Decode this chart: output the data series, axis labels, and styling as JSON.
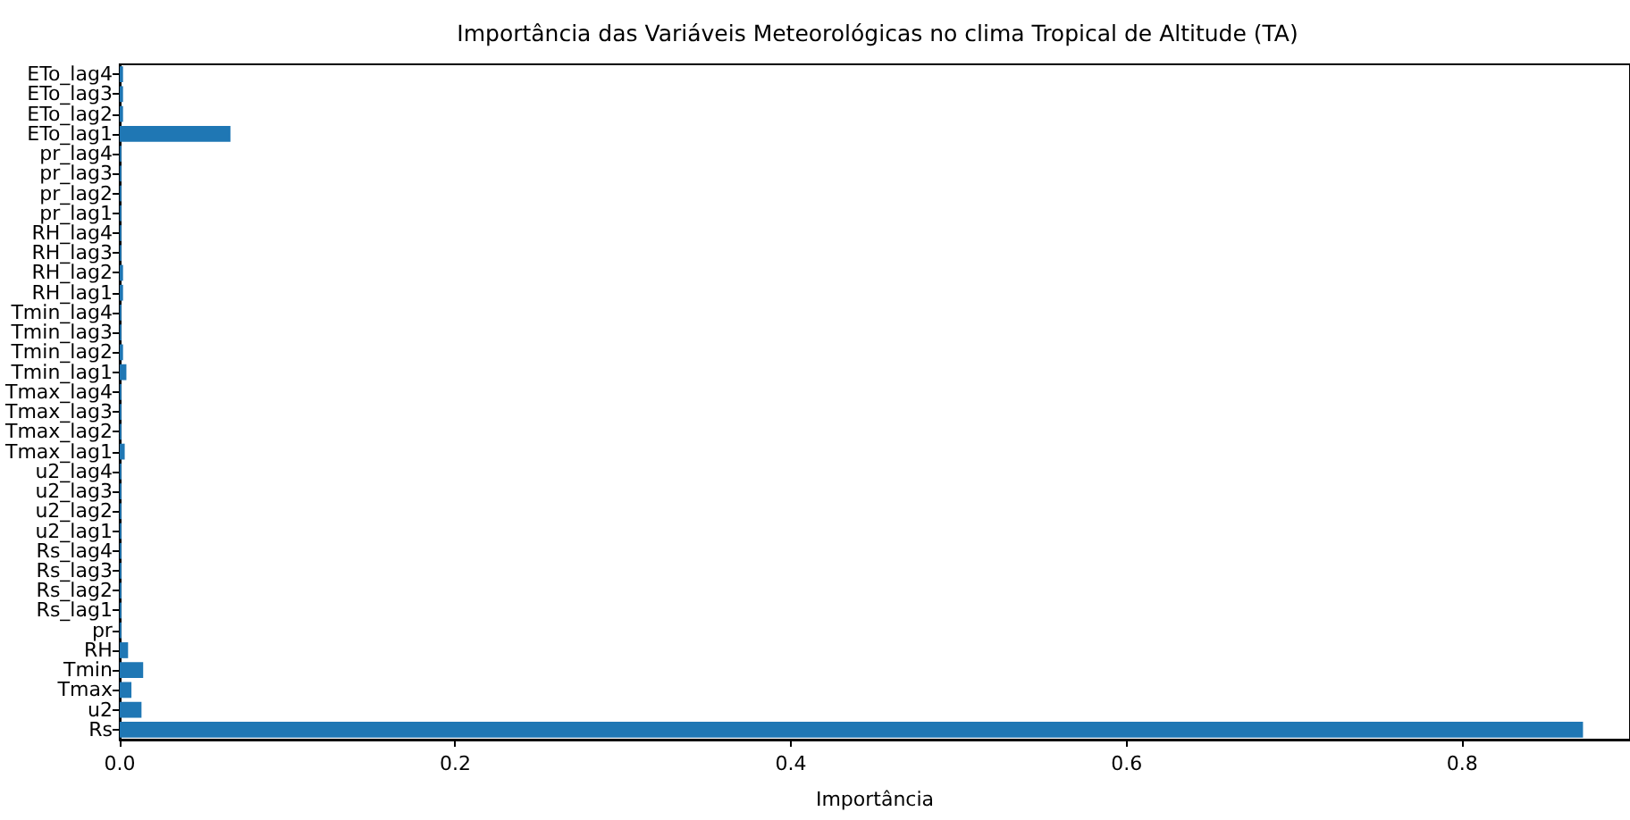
{
  "chart_data": {
    "type": "bar",
    "orientation": "horizontal",
    "title": "Importância das Variáveis Meteorológicas no clima Tropical de Altitude (TA)",
    "xlabel": "Importância",
    "categories": [
      "ETo_lag4",
      "ETo_lag3",
      "ETo_lag2",
      "ETo_lag1",
      "pr_lag4",
      "pr_lag3",
      "pr_lag2",
      "pr_lag1",
      "RH_lag4",
      "RH_lag3",
      "RH_lag2",
      "RH_lag1",
      "Tmin_lag4",
      "Tmin_lag3",
      "Tmin_lag2",
      "Tmin_lag1",
      "Tmax_lag4",
      "Tmax_lag3",
      "Tmax_lag2",
      "Tmax_lag1",
      "u2_lag4",
      "u2_lag3",
      "u2_lag2",
      "u2_lag1",
      "Rs_lag4",
      "Rs_lag3",
      "Rs_lag2",
      "Rs_lag1",
      "pr",
      "RH",
      "Tmin",
      "Tmax",
      "u2",
      "Rs"
    ],
    "values": [
      0.002,
      0.002,
      0.002,
      0.066,
      0.001,
      0.001,
      0.001,
      0.001,
      0.001,
      0.001,
      0.002,
      0.002,
      0.001,
      0.001,
      0.002,
      0.004,
      0.001,
      0.001,
      0.001,
      0.003,
      0.001,
      0.001,
      0.001,
      0.001,
      0.001,
      0.001,
      0.001,
      0.001,
      0.001,
      0.005,
      0.014,
      0.007,
      0.013,
      0.872
    ],
    "color": "#1f77b4",
    "xlim": [
      0,
      0.9
    ],
    "xticks": [
      {
        "value": 0,
        "label": "0.0"
      },
      0.2,
      0.4,
      0.6,
      0.8
    ],
    "grid": false
  }
}
